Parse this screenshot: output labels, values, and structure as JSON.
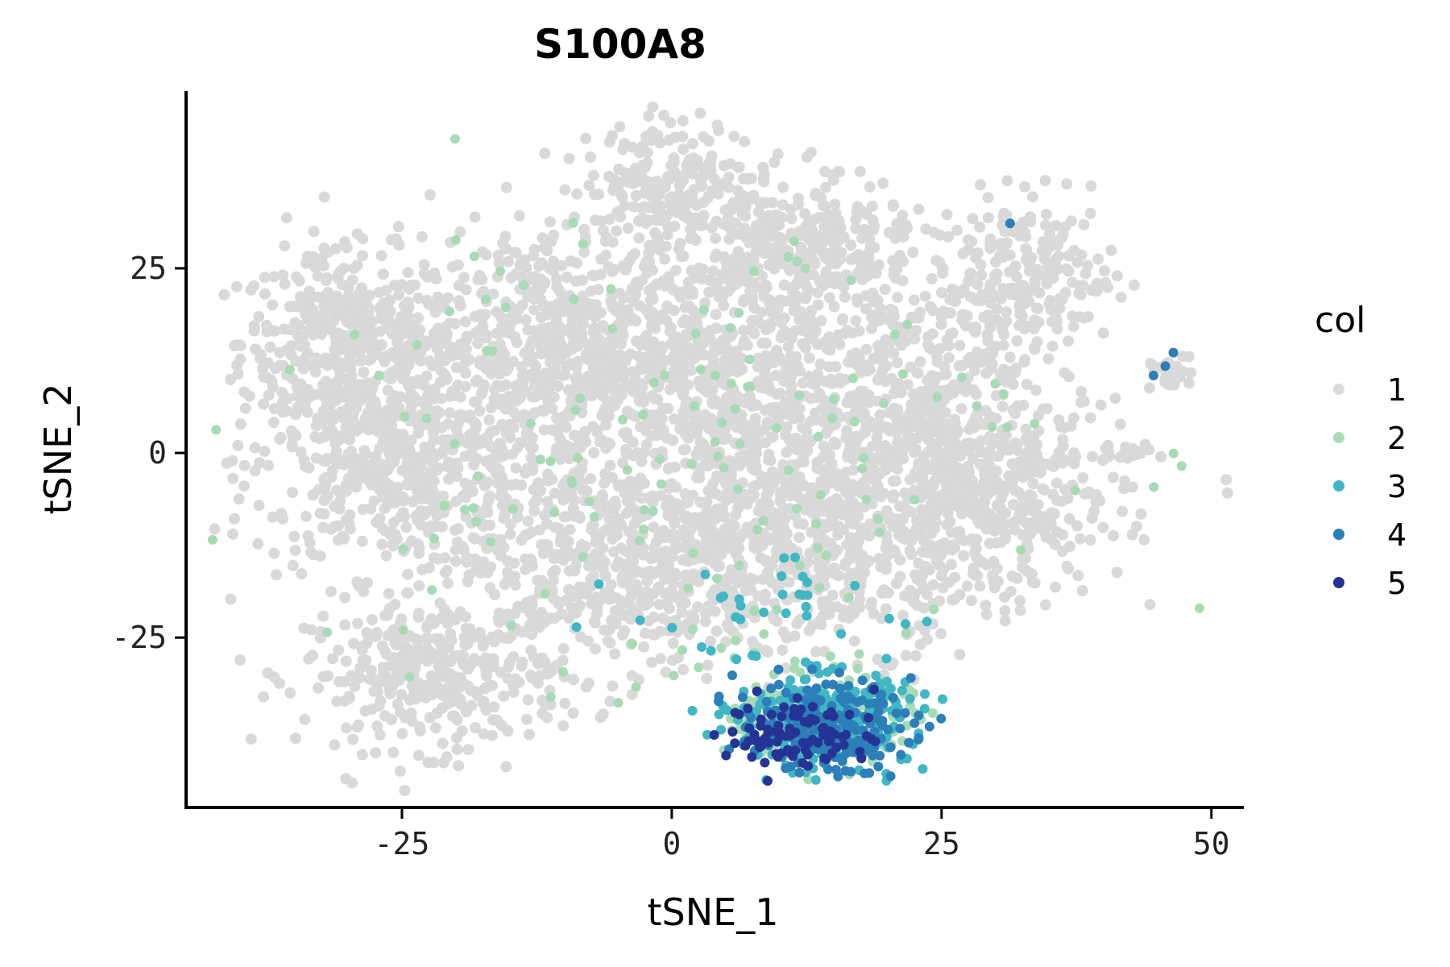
{
  "chart_data": {
    "type": "scatter",
    "title": "S100A8",
    "xlabel": "tSNE_1",
    "ylabel": "tSNE_2",
    "xlim": [
      -45,
      53
    ],
    "ylim": [
      -48,
      49
    ],
    "xticks": [
      -25,
      0,
      25,
      50
    ],
    "yticks": [
      -25,
      0,
      25
    ],
    "grid": false,
    "legend": {
      "title": "col",
      "position": "right",
      "entries": [
        {
          "label": "1",
          "color": "#d9d9d9"
        },
        {
          "label": "2",
          "color": "#a8dab5"
        },
        {
          "label": "3",
          "color": "#41b6c4"
        },
        {
          "label": "4",
          "color": "#2c7fb8"
        },
        {
          "label": "5",
          "color": "#253494"
        }
      ]
    },
    "clusters": [
      {
        "category": "1",
        "cx": -30,
        "cy": 15,
        "sx": 5,
        "sy": 6,
        "n": 420
      },
      {
        "category": "1",
        "cx": -25,
        "cy": -2,
        "sx": 7,
        "sy": 7,
        "n": 520
      },
      {
        "category": "1",
        "cx": -22,
        "cy": -30,
        "sx": 6,
        "sy": 5,
        "n": 360
      },
      {
        "category": "1",
        "cx": -12,
        "cy": 15,
        "sx": 7,
        "sy": 8,
        "n": 520
      },
      {
        "category": "1",
        "cx": -5,
        "cy": -15,
        "sx": 8,
        "sy": 7,
        "n": 560
      },
      {
        "category": "1",
        "cx": 0,
        "cy": 37,
        "sx": 4,
        "sy": 4,
        "n": 200
      },
      {
        "category": "1",
        "cx": 2,
        "cy": 10,
        "sx": 8,
        "sy": 10,
        "n": 720
      },
      {
        "category": "1",
        "cx": 12,
        "cy": 27,
        "sx": 5,
        "sy": 5,
        "n": 320
      },
      {
        "category": "1",
        "cx": 14,
        "cy": -10,
        "sx": 8,
        "sy": 8,
        "n": 620
      },
      {
        "category": "1",
        "cx": 22,
        "cy": 8,
        "sx": 7,
        "sy": 8,
        "n": 440
      },
      {
        "category": "1",
        "cx": 30,
        "cy": -6,
        "sx": 6,
        "sy": 7,
        "n": 400
      },
      {
        "category": "1",
        "cx": 33,
        "cy": 24,
        "sx": 4,
        "sy": 5,
        "n": 220
      },
      {
        "category": "1",
        "cx": 46,
        "cy": 11,
        "sx": 1,
        "sy": 1.2,
        "n": 30
      },
      {
        "category": "1",
        "cx": 42,
        "cy": 0,
        "sx": 1.5,
        "sy": 0.5,
        "n": 15
      },
      {
        "category": "2",
        "cx": 0,
        "cy": 0,
        "sx": 18,
        "sy": 18,
        "n": 160
      },
      {
        "category": "2",
        "cx": 14,
        "cy": -36,
        "sx": 4,
        "sy": 3,
        "n": 180
      },
      {
        "category": "3",
        "cx": 14,
        "cy": -36,
        "sx": 4,
        "sy": 3,
        "n": 300
      },
      {
        "category": "3",
        "cx": 8,
        "cy": -22,
        "sx": 6,
        "sy": 4,
        "n": 35
      },
      {
        "category": "4",
        "cx": 14,
        "cy": -37,
        "sx": 4,
        "sy": 3,
        "n": 200
      },
      {
        "category": "5",
        "cx": 12,
        "cy": -38,
        "sx": 3.5,
        "sy": 2.5,
        "n": 90
      },
      {
        "category": "4",
        "cx": 46,
        "cy": 11,
        "sx": 0.6,
        "sy": 1.5,
        "n": 3
      },
      {
        "category": "4",
        "cx": 32,
        "cy": 31,
        "sx": 0.3,
        "sy": 0.3,
        "n": 1
      }
    ]
  }
}
